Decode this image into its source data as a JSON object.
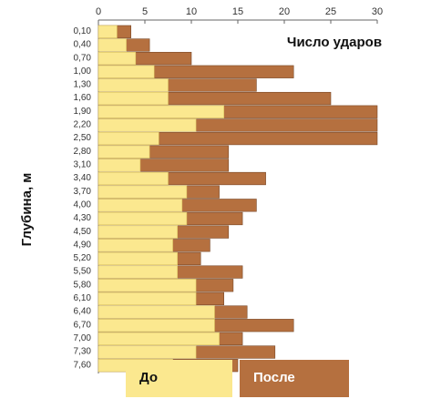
{
  "chart_data": {
    "type": "bar",
    "orientation": "horizontal",
    "overlap": true,
    "title": "Число ударов",
    "y_label": "Глубина, м",
    "categories": [
      "0,10",
      "0,40",
      "0,70",
      "1,00",
      "1,30",
      "1,60",
      "1,90",
      "2,20",
      "2,50",
      "2,80",
      "3,10",
      "3,40",
      "3,70",
      "4,00",
      "4,30",
      "4,50",
      "4,90",
      "5,20",
      "5,50",
      "5,80",
      "6,10",
      "6,40",
      "6,70",
      "7,00",
      "7,30",
      "7,60"
    ],
    "series": [
      {
        "name": "После",
        "color": "#b5703f",
        "values": [
          3.5,
          5.5,
          10,
          21,
          17,
          25,
          30,
          30,
          30,
          14,
          14,
          18,
          13,
          17,
          15.5,
          14,
          12,
          11,
          15.5,
          14.5,
          13.5,
          16,
          21,
          15.5,
          19,
          15
        ]
      },
      {
        "name": "До",
        "color": "#fbe88f",
        "values": [
          2,
          3,
          4,
          6,
          7.5,
          7.5,
          13.5,
          10.5,
          6.5,
          5.5,
          4.5,
          7.5,
          9.5,
          9,
          9.5,
          8.5,
          8,
          8.5,
          8.5,
          10.5,
          10.5,
          12.5,
          12.5,
          13,
          10.5,
          8
        ]
      }
    ],
    "xlim": [
      0,
      30
    ],
    "xticks": [
      0,
      5,
      10,
      15,
      20,
      25,
      30
    ]
  }
}
